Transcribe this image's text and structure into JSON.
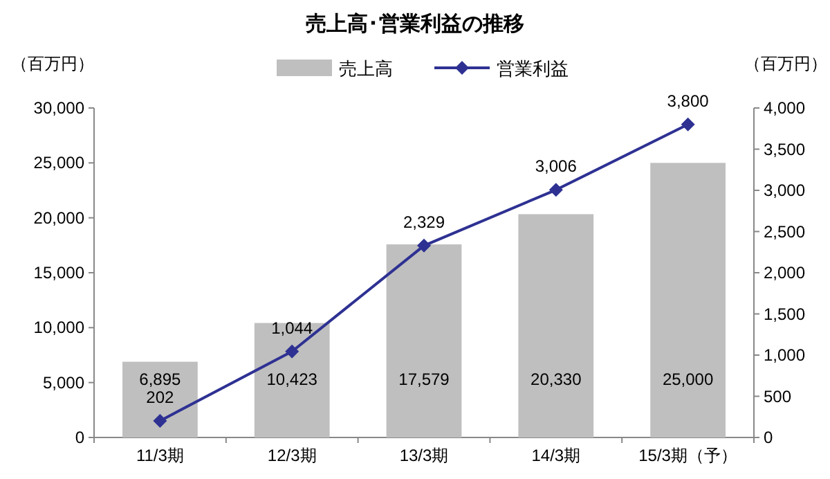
{
  "chart_data": {
    "type": "bar",
    "title": "売上高･営業利益の推移",
    "ylabel": "（百万円）",
    "y2label": "（百万円）",
    "categories": [
      "11/3期",
      "12/3期",
      "13/3期",
      "14/3期",
      "15/3期（予）"
    ],
    "series": [
      {
        "name": "売上高",
        "color": "#bfbfbf",
        "values": [
          6895,
          10423,
          17579,
          20330,
          25000
        ],
        "value_labels": [
          "6,895",
          "10,423",
          "17,579",
          "20,330",
          "25,000"
        ]
      },
      {
        "name": "営業利益",
        "type": "line",
        "axis": "y2",
        "color": "#2e3192",
        "marker": "diamond",
        "values": [
          202,
          1044,
          2329,
          3006,
          3800
        ],
        "value_labels": [
          "202",
          "1,044",
          "2,329",
          "3,006",
          "3,800"
        ]
      }
    ],
    "ylim": [
      0,
      30000
    ],
    "yticks": [
      0,
      {
        "value": 5000,
        "label": "5,000"
      },
      {
        "value": 10000,
        "label": "10,000"
      },
      {
        "value": 15000,
        "label": "15,000"
      },
      {
        "value": 20000,
        "label": "20,000"
      },
      {
        "value": 25000,
        "label": "25,000"
      },
      {
        "value": 30000,
        "label": "30,000"
      }
    ],
    "y2lim": [
      0,
      4000
    ],
    "y2ticks": [
      0,
      500,
      {
        "value": 1000,
        "label": "1,000"
      },
      {
        "value": 1500,
        "label": "1,500"
      },
      {
        "value": 2000,
        "label": "2,000"
      },
      {
        "value": 2500,
        "label": "2,500"
      },
      {
        "value": 3000,
        "label": "3,000"
      },
      {
        "value": 3500,
        "label": "3,500"
      },
      {
        "value": 4000,
        "label": "4,000"
      }
    ],
    "legend": "top"
  }
}
